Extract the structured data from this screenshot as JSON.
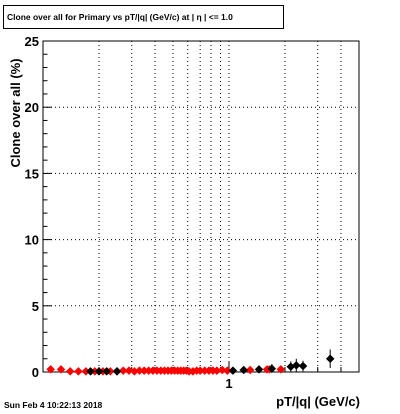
{
  "title": "Clone  over all for Primary vs pT/|q| (GeV/c) at |  η | <= 1.0",
  "timestamp": "Sun Feb  4 10:22:13 2018",
  "chart_data": {
    "type": "scatter",
    "xlabel": "pT/|q| (GeV/c)",
    "ylabel": "Clone  over all (%)",
    "x_scale": "log",
    "xlim": [
      0.1,
      5.0
    ],
    "ylim": [
      0,
      25
    ],
    "y_ticks": [
      0,
      5,
      10,
      15,
      20,
      25
    ],
    "x_tick_labels": [
      {
        "value": 1,
        "label": "1"
      }
    ],
    "grid": true,
    "colors": {
      "series_red": "#ff0000",
      "series_black": "#000000"
    },
    "series": [
      {
        "color": "#ff0000",
        "marker": "diamond",
        "x": [
          0.11,
          0.125,
          0.14,
          0.155,
          0.17,
          0.19,
          0.21,
          0.23,
          0.25,
          0.27,
          0.29,
          0.31,
          0.33,
          0.35,
          0.37,
          0.39,
          0.41,
          0.43,
          0.45,
          0.47,
          0.49,
          0.51,
          0.53,
          0.55,
          0.57,
          0.59,
          0.61,
          0.64,
          0.67,
          0.7,
          0.74,
          0.78,
          0.82,
          0.86,
          0.92,
          0.98,
          1.3,
          1.6,
          1.65,
          1.9
        ],
        "y": [
          0.2,
          0.2,
          0.05,
          0.05,
          0.05,
          0.05,
          0.05,
          0.05,
          0.05,
          0.1,
          0.1,
          0.05,
          0.1,
          0.1,
          0.1,
          0.1,
          0.1,
          0.1,
          0.1,
          0.1,
          0.1,
          0.1,
          0.1,
          0.1,
          0.1,
          0.1,
          0.05,
          0.05,
          0.1,
          0.1,
          0.1,
          0.1,
          0.1,
          0.1,
          0.15,
          0.1,
          0.15,
          0.2,
          0.2,
          0.2
        ]
      },
      {
        "color": "#000000",
        "marker": "diamond",
        "x": [
          0.18,
          0.2,
          0.22,
          0.25,
          1.05,
          1.2,
          1.45,
          1.7,
          2.15,
          2.3,
          2.5,
          3.5
        ],
        "y": [
          0.05,
          0.05,
          0.05,
          0.05,
          0.1,
          0.15,
          0.2,
          0.25,
          0.4,
          0.5,
          0.45,
          1.0
        ],
        "yerr": [
          0.05,
          0.05,
          0.05,
          0.05,
          0.1,
          0.2,
          0.3,
          0.35,
          0.4,
          0.5,
          0.4,
          0.7
        ]
      }
    ]
  }
}
